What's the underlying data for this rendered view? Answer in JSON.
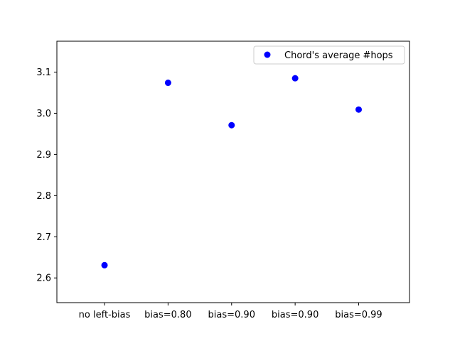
{
  "chart_data": {
    "type": "scatter",
    "categories": [
      "no left-bias",
      "bias=0.80",
      "bias=0.90",
      "bias=0.90",
      "bias=0.99"
    ],
    "series": [
      {
        "name": "Chord's average #hops",
        "values": [
          2.631,
          3.074,
          2.971,
          3.085,
          3.009
        ],
        "color": "#0000ff",
        "marker": "circle"
      }
    ],
    "yticks": [
      "2.6",
      "2.7",
      "2.8",
      "2.9",
      "3.0",
      "3.1"
    ],
    "ylim": [
      2.54,
      3.175
    ],
    "xlim": [
      -0.75,
      4.8
    ],
    "grid": false,
    "legend_position": "upper right"
  }
}
